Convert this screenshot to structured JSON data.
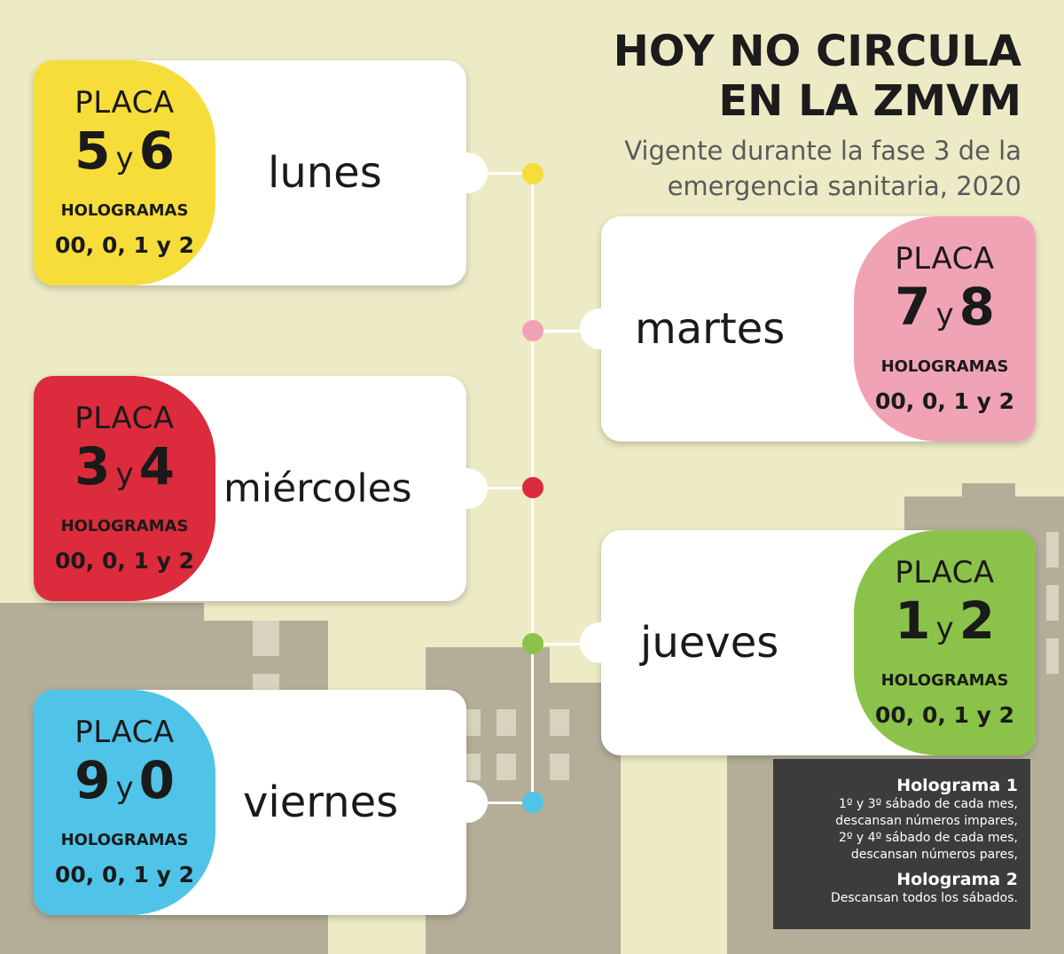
{
  "header": {
    "title_line1": "HOY NO CIRCULA",
    "title_line2": "EN LA ZMVM",
    "subtitle_line1": "Vigente durante la fase 3 de la",
    "subtitle_line2": "emergencia sanitaria, 2020"
  },
  "days": [
    {
      "day": "lunes",
      "placa": "PLACA",
      "num1": "5",
      "y": "y",
      "num2": "6",
      "hologramas": "HOLOGRAMAS",
      "holo_values": "00, 0, 1 y 2",
      "color": "#f7dd3a"
    },
    {
      "day": "martes",
      "placa": "PLACA",
      "num1": "7",
      "y": "y",
      "num2": "8",
      "hologramas": "HOLOGRAMAS",
      "holo_values": "00, 0, 1 y 2",
      "color": "#f1a3b6"
    },
    {
      "day": "miércoles",
      "placa": "PLACA",
      "num1": "3",
      "y": "y",
      "num2": "4",
      "hologramas": "HOLOGRAMAS",
      "holo_values": "00, 0, 1 y 2",
      "color": "#dc2b3c"
    },
    {
      "day": "jueves",
      "placa": "PLACA",
      "num1": "1",
      "y": "y",
      "num2": "2",
      "hologramas": "HOLOGRAMAS",
      "holo_values": "00, 0, 1 y 2",
      "color": "#8bc34a"
    },
    {
      "day": "viernes",
      "placa": "PLACA",
      "num1": "9",
      "y": "y",
      "num2": "0",
      "hologramas": "HOLOGRAMAS",
      "holo_values": "00, 0, 1 y 2",
      "color": "#4fc3e8"
    }
  ],
  "legend": {
    "h1": "Holograma 1",
    "l1": "1º y 3º sábado de cada mes,",
    "l2": "descansan números impares,",
    "l3": "2º y 4º sábado de cada mes,",
    "l4": "descansan números pares,",
    "h2": "Holograma 2",
    "l5": "Descansan todos los sábados."
  },
  "colors": {
    "background": "#ecebc6",
    "buildings": "#b3ad98",
    "legend_bg": "#3c3c3c"
  }
}
